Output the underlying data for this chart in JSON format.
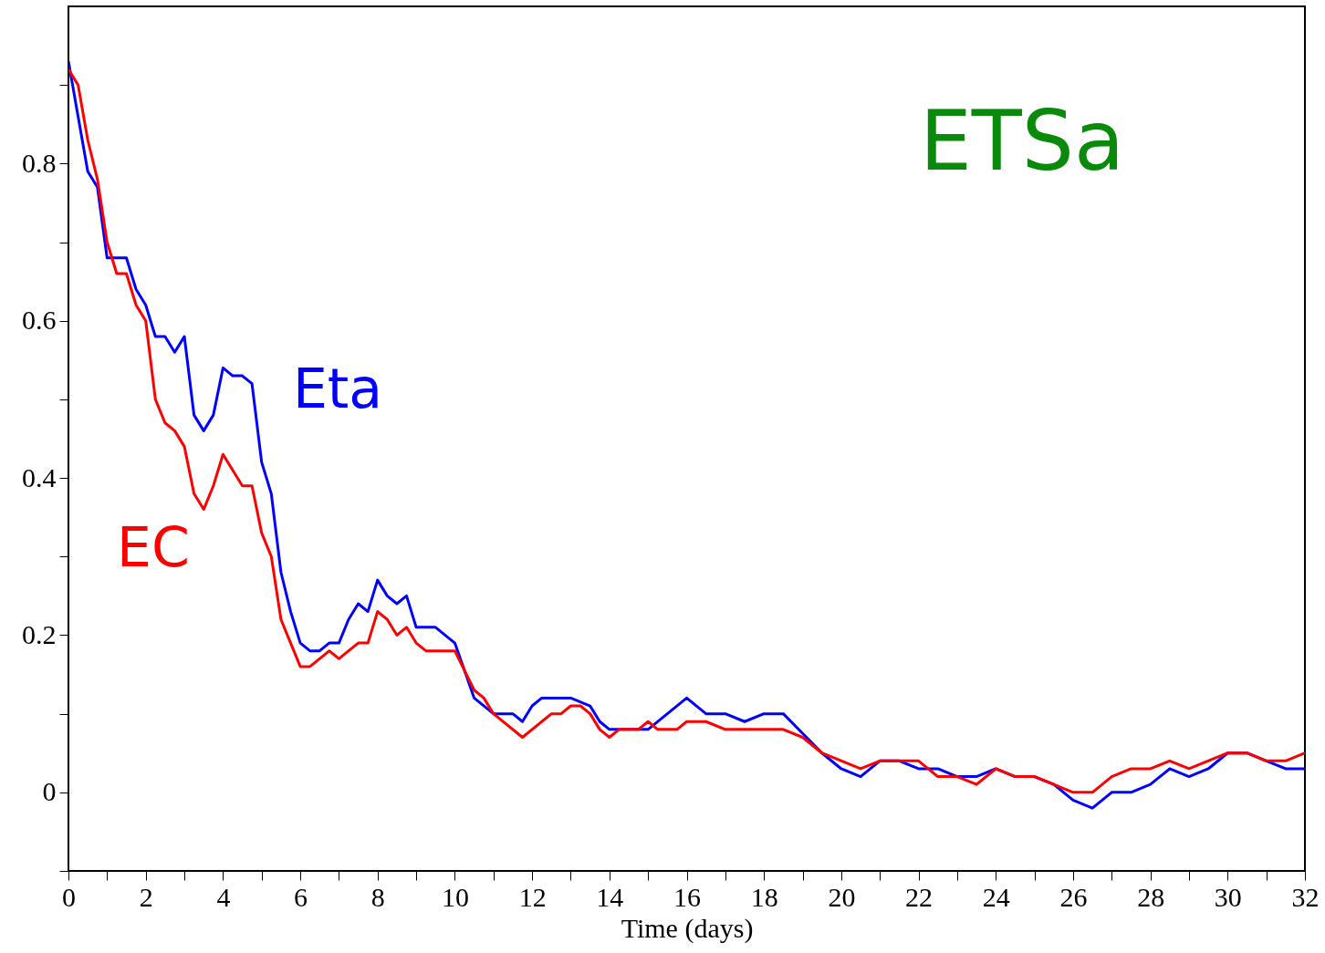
{
  "chart_data": {
    "type": "line",
    "title": "ETSa",
    "xlabel": "Time (days)",
    "xlim": [
      0,
      32
    ],
    "ylim": [
      -0.1,
      1.0
    ],
    "xticks": [
      0,
      {
        "value": 1,
        "label": null
      },
      2,
      {
        "value": 3,
        "label": null
      },
      4,
      {
        "value": 5,
        "label": null
      },
      6,
      {
        "value": 7,
        "label": null
      },
      8,
      {
        "value": 9,
        "label": null
      },
      10,
      {
        "value": 11,
        "label": null
      },
      12,
      {
        "value": 13,
        "label": null
      },
      14,
      {
        "value": 15,
        "label": null
      },
      16,
      {
        "value": 17,
        "label": null
      },
      18,
      {
        "value": 19,
        "label": null
      },
      20,
      {
        "value": 21,
        "label": null
      },
      22,
      {
        "value": 23,
        "label": null
      },
      24,
      {
        "value": 25,
        "label": null
      },
      26,
      {
        "value": 27,
        "label": null
      },
      28,
      {
        "value": 29,
        "label": null
      },
      30,
      {
        "value": 31,
        "label": null
      },
      32
    ],
    "yticks": [
      {
        "value": -0.1,
        "label": null
      },
      0,
      {
        "value": 0.1,
        "label": null
      },
      0.2,
      {
        "value": 0.3,
        "label": null
      },
      0.4,
      {
        "value": 0.5,
        "label": null
      },
      0.6,
      {
        "value": 0.7,
        "label": null
      },
      0.8,
      {
        "value": 0.9,
        "label": null
      }
    ],
    "grid": false,
    "legend": false,
    "marker": "none",
    "line_style": "solid",
    "series": [
      {
        "name": "Eta",
        "color": "#0000ff",
        "x": [
          0,
          0.25,
          0.5,
          0.75,
          1,
          1.25,
          1.5,
          1.75,
          2,
          2.25,
          2.5,
          2.75,
          3,
          3.25,
          3.5,
          3.75,
          4,
          4.25,
          4.5,
          4.75,
          5,
          5.25,
          5.5,
          5.75,
          6,
          6.25,
          6.5,
          6.75,
          7,
          7.25,
          7.5,
          7.75,
          8,
          8.25,
          8.5,
          8.75,
          9,
          9.5,
          10,
          10.5,
          11,
          11.5,
          11.75,
          12,
          12.25,
          13,
          13.5,
          13.75,
          14,
          15,
          16,
          16.5,
          17,
          17.5,
          18,
          18.5,
          19.5,
          20,
          20.5,
          21,
          21.5,
          22,
          22.5,
          23,
          23.5,
          24,
          24.5,
          25,
          25.5,
          26,
          26.5,
          27,
          27.5,
          28,
          28.5,
          29,
          29.5,
          30,
          30.5,
          31,
          31.5,
          32
        ],
        "values": [
          0.93,
          0.86,
          0.79,
          0.77,
          0.68,
          0.68,
          0.68,
          0.64,
          0.62,
          0.58,
          0.58,
          0.56,
          0.58,
          0.48,
          0.46,
          0.48,
          0.54,
          0.53,
          0.53,
          0.52,
          0.42,
          0.38,
          0.28,
          0.23,
          0.19,
          0.18,
          0.18,
          0.19,
          0.19,
          0.22,
          0.24,
          0.23,
          0.27,
          0.25,
          0.24,
          0.25,
          0.21,
          0.21,
          0.19,
          0.12,
          0.1,
          0.1,
          0.09,
          0.11,
          0.12,
          0.12,
          0.11,
          0.09,
          0.08,
          0.08,
          0.12,
          0.1,
          0.1,
          0.09,
          0.1,
          0.1,
          0.05,
          0.03,
          0.02,
          0.04,
          0.04,
          0.03,
          0.03,
          0.02,
          0.02,
          0.03,
          0.02,
          0.02,
          0.01,
          -0.01,
          -0.02,
          0,
          0,
          0.01,
          0.03,
          0.02,
          0.03,
          0.05,
          0.05,
          0.04,
          0.03,
          0.03
        ]
      },
      {
        "name": "EC",
        "color": "#ff0000",
        "x": [
          0,
          0.25,
          0.5,
          0.75,
          1,
          1.25,
          1.5,
          1.75,
          2,
          2.25,
          2.5,
          2.75,
          3,
          3.25,
          3.5,
          3.75,
          4,
          4.25,
          4.5,
          4.75,
          5,
          5.25,
          5.5,
          5.75,
          6,
          6.25,
          6.5,
          6.75,
          7,
          7.25,
          7.5,
          7.75,
          8,
          8.25,
          8.5,
          8.75,
          9,
          9.25,
          10,
          10.5,
          10.75,
          11,
          11.75,
          12.5,
          12.75,
          13,
          13.25,
          13.5,
          13.75,
          14,
          14.25,
          14.75,
          15,
          15.25,
          15.75,
          16,
          16.5,
          17,
          18.5,
          19,
          19.5,
          20.5,
          21,
          22,
          22.5,
          23,
          23.5,
          24,
          24.5,
          25,
          25.5,
          26,
          26.5,
          27,
          27.5,
          28,
          28.5,
          29,
          30,
          30.5,
          31,
          31.5,
          32
        ],
        "values": [
          0.92,
          0.9,
          0.83,
          0.78,
          0.7,
          0.66,
          0.66,
          0.62,
          0.6,
          0.5,
          0.47,
          0.46,
          0.44,
          0.38,
          0.36,
          0.39,
          0.43,
          0.41,
          0.39,
          0.39,
          0.33,
          0.3,
          0.22,
          0.19,
          0.16,
          0.16,
          0.17,
          0.18,
          0.17,
          0.18,
          0.19,
          0.19,
          0.23,
          0.22,
          0.2,
          0.21,
          0.19,
          0.18,
          0.18,
          0.13,
          0.12,
          0.1,
          0.07,
          0.1,
          0.1,
          0.11,
          0.11,
          0.1,
          0.08,
          0.07,
          0.08,
          0.08,
          0.09,
          0.08,
          0.08,
          0.09,
          0.09,
          0.08,
          0.08,
          0.07,
          0.05,
          0.03,
          0.04,
          0.04,
          0.02,
          0.02,
          0.01,
          0.03,
          0.02,
          0.02,
          0.01,
          0,
          0,
          0.02,
          0.03,
          0.03,
          0.04,
          0.03,
          0.05,
          0.05,
          0.04,
          0.04,
          0.05
        ]
      }
    ]
  }
}
